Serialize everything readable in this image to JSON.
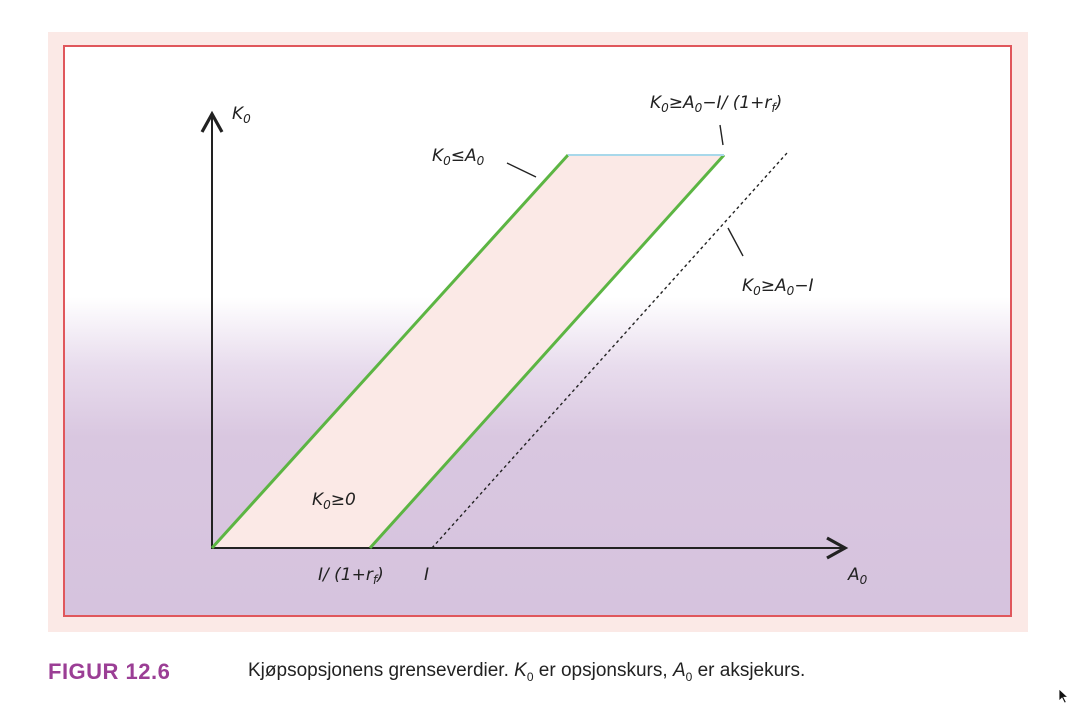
{
  "figure": {
    "axis_labels": {
      "y": "K",
      "y_sub": "0",
      "x": "A",
      "x_sub": "0"
    },
    "tick_labels": [
      {
        "a": "I/ (1+r",
        "sub": "f",
        "b": ")"
      },
      {
        "a": "I"
      }
    ],
    "region_labels": {
      "upper_bound": {
        "a": "K",
        "a_sub": "0",
        "b": "≤A",
        "b_sub": "0"
      },
      "lower_bound_rf": {
        "a": "K",
        "a_sub": "0",
        "b": "≥A",
        "b_sub": "0",
        "c": "−I/ (1+r",
        "c_sub": "f",
        "d": ")"
      },
      "lower_bound_plain": {
        "a": "K",
        "a_sub": "0",
        "b": "≥A",
        "b_sub": "0",
        "c": "−I"
      },
      "nonneg": {
        "a": "K",
        "a_sub": "0",
        "b": "≥0"
      }
    },
    "colors": {
      "boundary_line": "#5cb543",
      "top_segment": "#a8d8ea",
      "band_fill": "#fbe9e6",
      "frame": "#e0575c"
    }
  },
  "caption": {
    "label": "FIGUR 12.6",
    "text_1": "Kjøpsopsjonens grenseverdier. ",
    "var_1": "K",
    "var_1_sub": "0",
    "text_2": " er opsjonskurs, ",
    "var_2": "A",
    "var_2_sub": "0",
    "text_3": " er aksjekurs."
  }
}
